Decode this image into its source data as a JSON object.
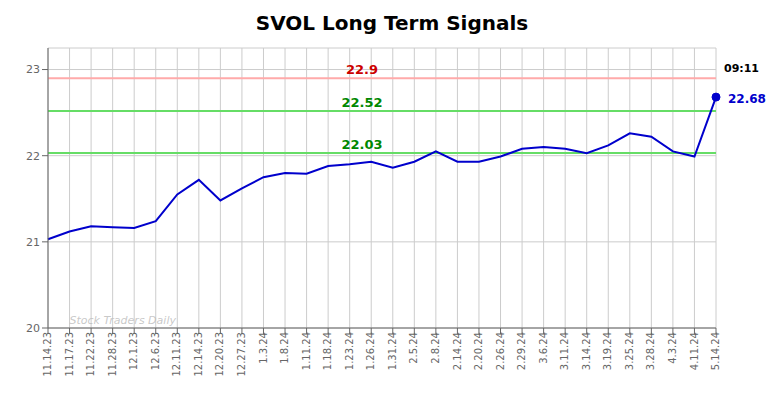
{
  "chart_data": {
    "type": "line",
    "title": "SVOL Long Term Signals",
    "categories": [
      "11.14.23",
      "11.17.23",
      "11.22.23",
      "11.28.23",
      "12.1.23",
      "12.6.23",
      "12.11.23",
      "12.14.23",
      "12.20.23",
      "12.27.23",
      "1.3.24",
      "1.8.24",
      "1.11.24",
      "1.18.24",
      "1.23.24",
      "1.26.24",
      "1.31.24",
      "2.5.24",
      "2.8.24",
      "2.14.24",
      "2.20.24",
      "2.26.24",
      "2.29.24",
      "3.6.24",
      "3.11.24",
      "3.14.24",
      "3.19.24",
      "3.25.24",
      "3.28.24",
      "4.3.24",
      "4.11.24",
      "5.14.24"
    ],
    "values": [
      21.03,
      21.12,
      21.18,
      21.17,
      21.16,
      21.24,
      21.55,
      21.72,
      21.48,
      21.62,
      21.75,
      21.8,
      21.79,
      21.88,
      21.9,
      21.93,
      21.86,
      21.93,
      22.05,
      21.93,
      21.93,
      21.99,
      22.08,
      22.1,
      22.08,
      22.03,
      22.12,
      22.26,
      22.22,
      22.05,
      21.99,
      22.68
    ],
    "color": "#0000cc",
    "ylim": [
      20.0,
      23.25
    ],
    "yticks": [
      20,
      21,
      22,
      23
    ],
    "grid": true,
    "reference_lines": [
      {
        "value": 22.9,
        "color": "#ffaaaa",
        "label_color": "#cc0000"
      },
      {
        "value": 22.52,
        "color": "#66dd66",
        "label_color": "#008800"
      },
      {
        "value": 22.03,
        "color": "#66dd66",
        "label_color": "#008800"
      }
    ],
    "annotations": [
      {
        "text": "09:11",
        "color": "#000000"
      },
      {
        "text": "22.68",
        "color": "#0000cc"
      },
      {
        "text": "Stock Traders Daily",
        "color": "#bbbbbb"
      }
    ]
  }
}
